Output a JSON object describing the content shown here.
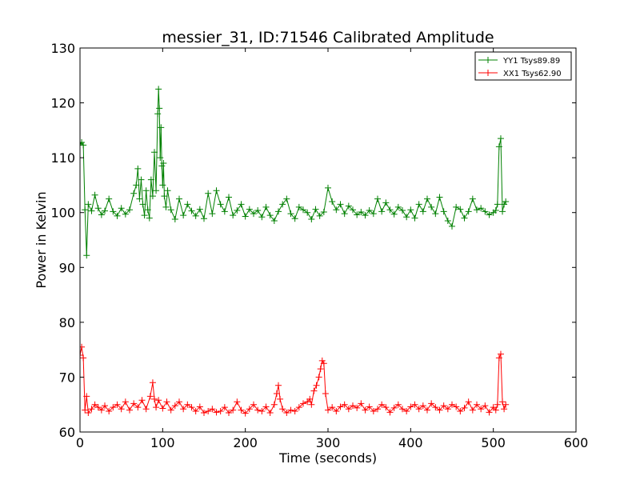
{
  "chart_data": {
    "type": "line",
    "title": "messier_31, ID:71546 Calibrated Amplitude",
    "xlabel": "Time (seconds)",
    "ylabel": "Power in Kelvin",
    "xlim": [
      0,
      600
    ],
    "ylim": [
      60,
      130
    ],
    "xticks": [
      0,
      100,
      200,
      300,
      400,
      500,
      600
    ],
    "yticks": [
      60,
      70,
      80,
      90,
      100,
      110,
      120,
      130
    ],
    "grid": false,
    "legend_position": "top-right",
    "marker": "+",
    "series": [
      {
        "name": "YY1 Tsys89.89",
        "color": "#008000",
        "x": [
          0,
          2,
          4,
          6,
          8,
          10,
          14,
          18,
          22,
          26,
          30,
          35,
          40,
          45,
          50,
          55,
          60,
          65,
          68,
          70,
          72,
          74,
          76,
          78,
          80,
          82,
          84,
          86,
          88,
          90,
          92,
          94,
          95,
          96,
          97,
          98,
          99,
          100,
          101,
          102,
          104,
          106,
          110,
          115,
          120,
          125,
          130,
          135,
          140,
          145,
          150,
          155,
          160,
          165,
          170,
          175,
          180,
          185,
          190,
          195,
          200,
          205,
          210,
          215,
          220,
          225,
          230,
          235,
          240,
          245,
          250,
          255,
          260,
          265,
          270,
          275,
          280,
          285,
          290,
          295,
          300,
          305,
          310,
          315,
          320,
          325,
          330,
          335,
          340,
          345,
          350,
          355,
          360,
          365,
          370,
          375,
          380,
          385,
          390,
          395,
          400,
          405,
          410,
          415,
          420,
          425,
          430,
          435,
          440,
          445,
          450,
          455,
          460,
          465,
          470,
          475,
          480,
          485,
          490,
          495,
          500,
          503,
          505,
          507,
          509,
          511,
          513,
          515
        ],
        "y": [
          112.5,
          112.8,
          112.3,
          100.5,
          92.2,
          101.5,
          100.3,
          103.2,
          100.8,
          99.6,
          100.3,
          102.5,
          100.2,
          99.4,
          100.8,
          99.7,
          100.5,
          103.5,
          105.0,
          108.0,
          102.5,
          106.0,
          101.5,
          99.5,
          104.0,
          100.5,
          99.0,
          106.0,
          103.0,
          111.0,
          104.0,
          118.0,
          122.5,
          119.0,
          110.0,
          115.5,
          108.5,
          105.0,
          109.0,
          103.0,
          101.0,
          104.0,
          100.5,
          98.8,
          102.5,
          99.5,
          101.5,
          100.3,
          99.4,
          100.6,
          98.9,
          103.5,
          99.8,
          104.0,
          101.5,
          100.2,
          102.8,
          99.5,
          100.4,
          101.5,
          99.3,
          100.6,
          99.8,
          100.4,
          99.2,
          101.0,
          99.5,
          98.5,
          100.2,
          101.5,
          102.5,
          99.8,
          98.9,
          101.0,
          100.5,
          100.0,
          98.8,
          100.6,
          99.4,
          100.1,
          104.5,
          102.0,
          100.5,
          101.5,
          99.8,
          101.2,
          100.5,
          99.6,
          100.1,
          99.5,
          100.4,
          99.8,
          102.5,
          100.2,
          101.8,
          100.5,
          99.7,
          101.0,
          100.4,
          99.2,
          100.5,
          99.0,
          101.5,
          100.2,
          102.5,
          101.0,
          99.8,
          102.8,
          100.2,
          98.5,
          97.5,
          101.0,
          100.6,
          99.0,
          100.2,
          102.5,
          100.5,
          100.8,
          100.2,
          99.6,
          100.0,
          100.4,
          101.5,
          112.0,
          113.5,
          100.2,
          101.5,
          102.0
        ]
      },
      {
        "name": "XX1 Tsys62.90",
        "color": "#ff0000",
        "x": [
          0,
          2,
          4,
          6,
          8,
          10,
          14,
          18,
          22,
          26,
          30,
          35,
          40,
          45,
          50,
          55,
          60,
          65,
          70,
          75,
          80,
          85,
          88,
          90,
          92,
          95,
          100,
          105,
          110,
          115,
          120,
          125,
          130,
          135,
          140,
          145,
          150,
          155,
          160,
          165,
          170,
          175,
          180,
          185,
          190,
          195,
          200,
          205,
          210,
          215,
          220,
          225,
          230,
          235,
          238,
          240,
          242,
          245,
          250,
          255,
          260,
          265,
          270,
          275,
          278,
          280,
          283,
          286,
          289,
          291,
          293,
          295,
          297,
          300,
          305,
          310,
          315,
          320,
          325,
          330,
          335,
          340,
          345,
          350,
          355,
          360,
          365,
          370,
          375,
          380,
          385,
          390,
          395,
          400,
          405,
          410,
          415,
          420,
          425,
          430,
          435,
          440,
          445,
          450,
          455,
          460,
          465,
          470,
          475,
          480,
          485,
          490,
          495,
          500,
          503,
          505,
          507,
          509,
          511,
          513,
          515
        ],
        "y": [
          74.0,
          75.5,
          73.5,
          64.0,
          66.5,
          63.5,
          64.2,
          65.0,
          64.5,
          64.0,
          64.8,
          63.8,
          64.5,
          65.0,
          64.2,
          65.5,
          64.0,
          65.2,
          64.5,
          65.8,
          64.2,
          66.5,
          69.0,
          66.0,
          64.5,
          65.8,
          64.3,
          65.5,
          64.0,
          64.8,
          65.5,
          64.2,
          65.0,
          64.5,
          63.8,
          64.6,
          63.5,
          63.8,
          64.2,
          63.6,
          63.8,
          64.5,
          63.5,
          64.0,
          65.5,
          64.0,
          63.4,
          64.2,
          65.0,
          64.0,
          63.8,
          64.6,
          63.5,
          65.0,
          67.0,
          68.5,
          66.0,
          64.2,
          63.5,
          64.0,
          63.8,
          64.5,
          65.2,
          65.5,
          66.0,
          65.0,
          67.5,
          68.5,
          70.0,
          71.5,
          73.0,
          72.5,
          67.0,
          64.0,
          64.5,
          63.8,
          64.6,
          65.0,
          64.2,
          64.8,
          64.4,
          65.2,
          64.0,
          64.6,
          63.8,
          64.2,
          65.0,
          64.5,
          63.6,
          64.4,
          65.0,
          64.2,
          63.8,
          64.6,
          65.0,
          64.2,
          64.8,
          64.0,
          65.2,
          64.5,
          64.0,
          64.8,
          64.2,
          65.0,
          64.6,
          63.8,
          64.4,
          65.5,
          64.0,
          65.0,
          64.2,
          64.8,
          63.6,
          64.5,
          64.0,
          65.0,
          73.5,
          74.2,
          65.5,
          64.2,
          65.0
        ]
      }
    ]
  }
}
